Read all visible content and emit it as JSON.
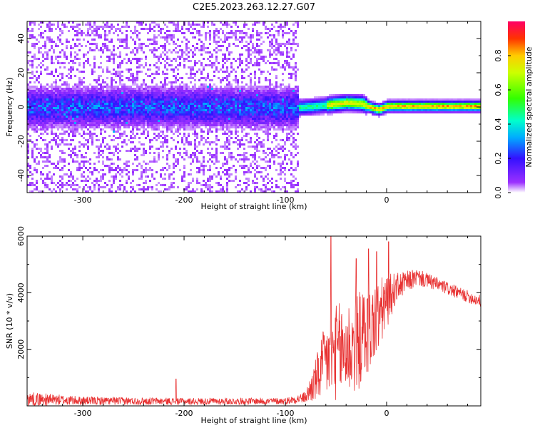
{
  "title": "C2E5.2023.263.12.27.G07",
  "chart_data": [
    {
      "type": "heatmap",
      "xlabel": "Height of straight line (km)",
      "ylabel": "Frequency (Hz)",
      "xlim": [
        -355,
        93
      ],
      "ylim": [
        -50,
        50
      ],
      "xticks": [
        -300,
        -200,
        -100,
        0
      ],
      "yticks": [
        -40,
        -20,
        0,
        20,
        40
      ],
      "colorbar": {
        "label": "Normalized spectral amplitude",
        "range": [
          0,
          1
        ],
        "ticks": [
          0.0,
          0.2,
          0.4,
          0.6,
          0.8
        ],
        "colormap": "rainbow (purple to red)"
      },
      "ridge": [
        {
          "x": -355,
          "f": 0
        },
        {
          "x": -300,
          "f": 0.5
        },
        {
          "x": -200,
          "f": 0.5
        },
        {
          "x": -100,
          "f": 0
        },
        {
          "x": -90,
          "f": 0
        },
        {
          "x": -70,
          "f": 1
        },
        {
          "x": -55,
          "f": 2
        },
        {
          "x": -40,
          "f": 3
        },
        {
          "x": -25,
          "f": 2.5
        },
        {
          "x": -15,
          "f": 0
        },
        {
          "x": -8,
          "f": -1
        },
        {
          "x": 0,
          "f": 1
        },
        {
          "x": 20,
          "f": 1
        },
        {
          "x": 93,
          "f": 1
        }
      ]
    },
    {
      "type": "line",
      "xlabel": "Height of straight line (km)",
      "ylabel": "SNR (10 * v/v)",
      "xlim": [
        -355,
        93
      ],
      "ylim": [
        0,
        6000
      ],
      "xticks": [
        -300,
        -200,
        -100,
        0
      ],
      "yticks": [
        2000,
        4000,
        6000
      ],
      "color": "#e83232",
      "envelope": [
        {
          "x": -355,
          "mean": 250,
          "spread": 250
        },
        {
          "x": -300,
          "mean": 180,
          "spread": 150
        },
        {
          "x": -200,
          "mean": 160,
          "spread": 120
        },
        {
          "x": -100,
          "mean": 170,
          "spread": 120
        },
        {
          "x": -80,
          "mean": 300,
          "spread": 200
        },
        {
          "x": -70,
          "mean": 900,
          "spread": 800
        },
        {
          "x": -60,
          "mean": 1600,
          "spread": 1400
        },
        {
          "x": -50,
          "mean": 1900,
          "spread": 1700
        },
        {
          "x": -40,
          "mean": 2000,
          "spread": 1800
        },
        {
          "x": -30,
          "mean": 2200,
          "spread": 1800
        },
        {
          "x": -20,
          "mean": 2600,
          "spread": 1600
        },
        {
          "x": -10,
          "mean": 3000,
          "spread": 1400
        },
        {
          "x": 0,
          "mean": 3700,
          "spread": 1000
        },
        {
          "x": 10,
          "mean": 4200,
          "spread": 500
        },
        {
          "x": 30,
          "mean": 4550,
          "spread": 300
        },
        {
          "x": 50,
          "mean": 4300,
          "spread": 250
        },
        {
          "x": 70,
          "mean": 4000,
          "spread": 220
        },
        {
          "x": 93,
          "mean": 3700,
          "spread": 220
        }
      ],
      "spikes": [
        {
          "x": -55,
          "y": 6000
        },
        {
          "x": -30,
          "y": 5200
        },
        {
          "x": -18,
          "y": 5550
        },
        {
          "x": -10,
          "y": 5450
        },
        {
          "x": 2,
          "y": 5800
        },
        {
          "x": -208,
          "y": 950
        }
      ]
    }
  ]
}
